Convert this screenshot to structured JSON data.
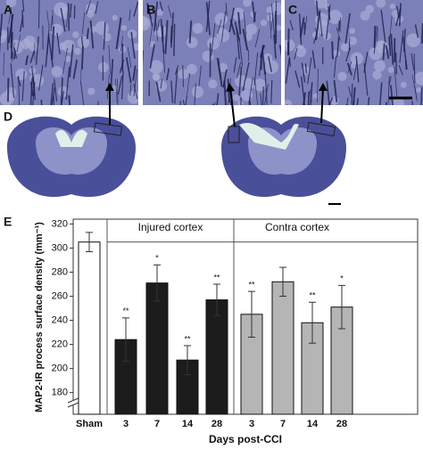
{
  "panel_labels": [
    "A",
    "B",
    "C",
    "D",
    "E"
  ],
  "chart_data": {
    "type": "bar",
    "ylabel": "MAP2-IR process surface density (mm⁻¹)",
    "xlabel": "Days post-CCI",
    "groups": [
      "Injured cortex",
      "Contra cortex"
    ],
    "categories": [
      "Sham",
      "3",
      "7",
      "14",
      "28",
      "3",
      "7",
      "14",
      "28"
    ],
    "values": [
      305,
      224,
      271,
      207,
      257,
      245,
      272,
      238,
      251
    ],
    "errors": [
      8,
      18,
      15,
      12,
      13,
      19,
      12,
      17,
      18
    ],
    "value_labels": [
      null,
      "**",
      "*",
      "**",
      "**",
      "**",
      null,
      "**",
      "*"
    ],
    "colors": [
      "#ffffff",
      "#1c1c1c",
      "#1c1c1c",
      "#1c1c1c",
      "#1c1c1c",
      "#b5b5b5",
      "#b5b5b5",
      "#b5b5b5",
      "#b5b5b5"
    ],
    "ylim": [
      162,
      324
    ],
    "yticks": [
      180,
      200,
      220,
      240,
      260,
      280,
      300,
      320
    ]
  }
}
